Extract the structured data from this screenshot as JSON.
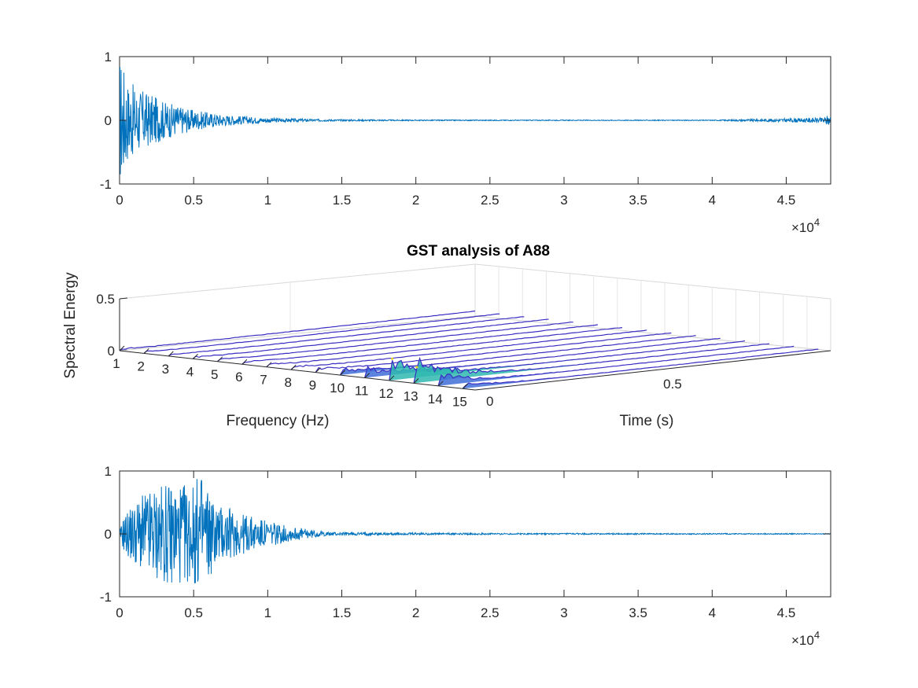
{
  "chart_data": [
    {
      "type": "line",
      "title": "",
      "xlabel": "",
      "ylabel": "",
      "xlim": [
        0,
        48000
      ],
      "ylim": [
        -1,
        1
      ],
      "x_ticks": [
        "0",
        "0.5",
        "1",
        "1.5",
        "2",
        "2.5",
        "3",
        "3.5",
        "4",
        "4.5"
      ],
      "y_ticks": [
        "-1",
        "0",
        "1"
      ],
      "x_multiplier": "×10",
      "x_multiplier_exp": "4",
      "series_color": "#0072BD",
      "envelope": {
        "x": [
          0,
          200,
          500,
          1000,
          2000,
          3000,
          5000,
          7000,
          9000,
          11000,
          14000,
          20000,
          30000,
          40000,
          47500,
          47800,
          48000
        ],
        "amplitude": [
          1.0,
          0.95,
          0.65,
          0.55,
          0.42,
          0.3,
          0.16,
          0.09,
          0.05,
          0.03,
          0.015,
          0.008,
          0.006,
          0.006,
          0.04,
          0.08,
          0.08
        ]
      }
    },
    {
      "type": "3d-line",
      "title": "GST analysis of A88",
      "xlabel": "Frequency (Hz)",
      "ylabel": "Time (s)",
      "zlabel": "Spectral Energy",
      "frequency_ticks": [
        "1",
        "2",
        "3",
        "4",
        "5",
        "6",
        "7",
        "8",
        "9",
        "10",
        "11",
        "12",
        "13",
        "14",
        "15"
      ],
      "time_ticks": [
        "0",
        "0.5"
      ],
      "z_ticks": [
        "0",
        "0.5"
      ],
      "peak_energy": [
        0.02,
        0.02,
        0.02,
        0.02,
        0.03,
        0.03,
        0.03,
        0.04,
        0.05,
        0.08,
        0.12,
        0.3,
        0.35,
        0.14,
        0.06
      ]
    },
    {
      "type": "line",
      "title": "",
      "xlabel": "",
      "ylabel": "",
      "xlim": [
        0,
        48000
      ],
      "ylim": [
        -1,
        1
      ],
      "x_ticks": [
        "0",
        "0.5",
        "1",
        "1.5",
        "2",
        "2.5",
        "3",
        "3.5",
        "4",
        "4.5"
      ],
      "y_ticks": [
        "-1",
        "0",
        "1"
      ],
      "x_multiplier": "×10",
      "x_multiplier_exp": "4",
      "series_color": "#0072BD",
      "envelope": {
        "x": [
          0,
          300,
          1000,
          2000,
          3000,
          4000,
          5000,
          5500,
          6500,
          8000,
          10000,
          12000,
          14000,
          18000,
          25000,
          35000,
          45000,
          48000
        ],
        "amplitude": [
          0.05,
          0.3,
          0.5,
          0.7,
          0.78,
          0.8,
          0.78,
          1.0,
          0.5,
          0.35,
          0.2,
          0.1,
          0.03,
          0.02,
          0.012,
          0.01,
          0.008,
          0.006
        ]
      }
    }
  ]
}
